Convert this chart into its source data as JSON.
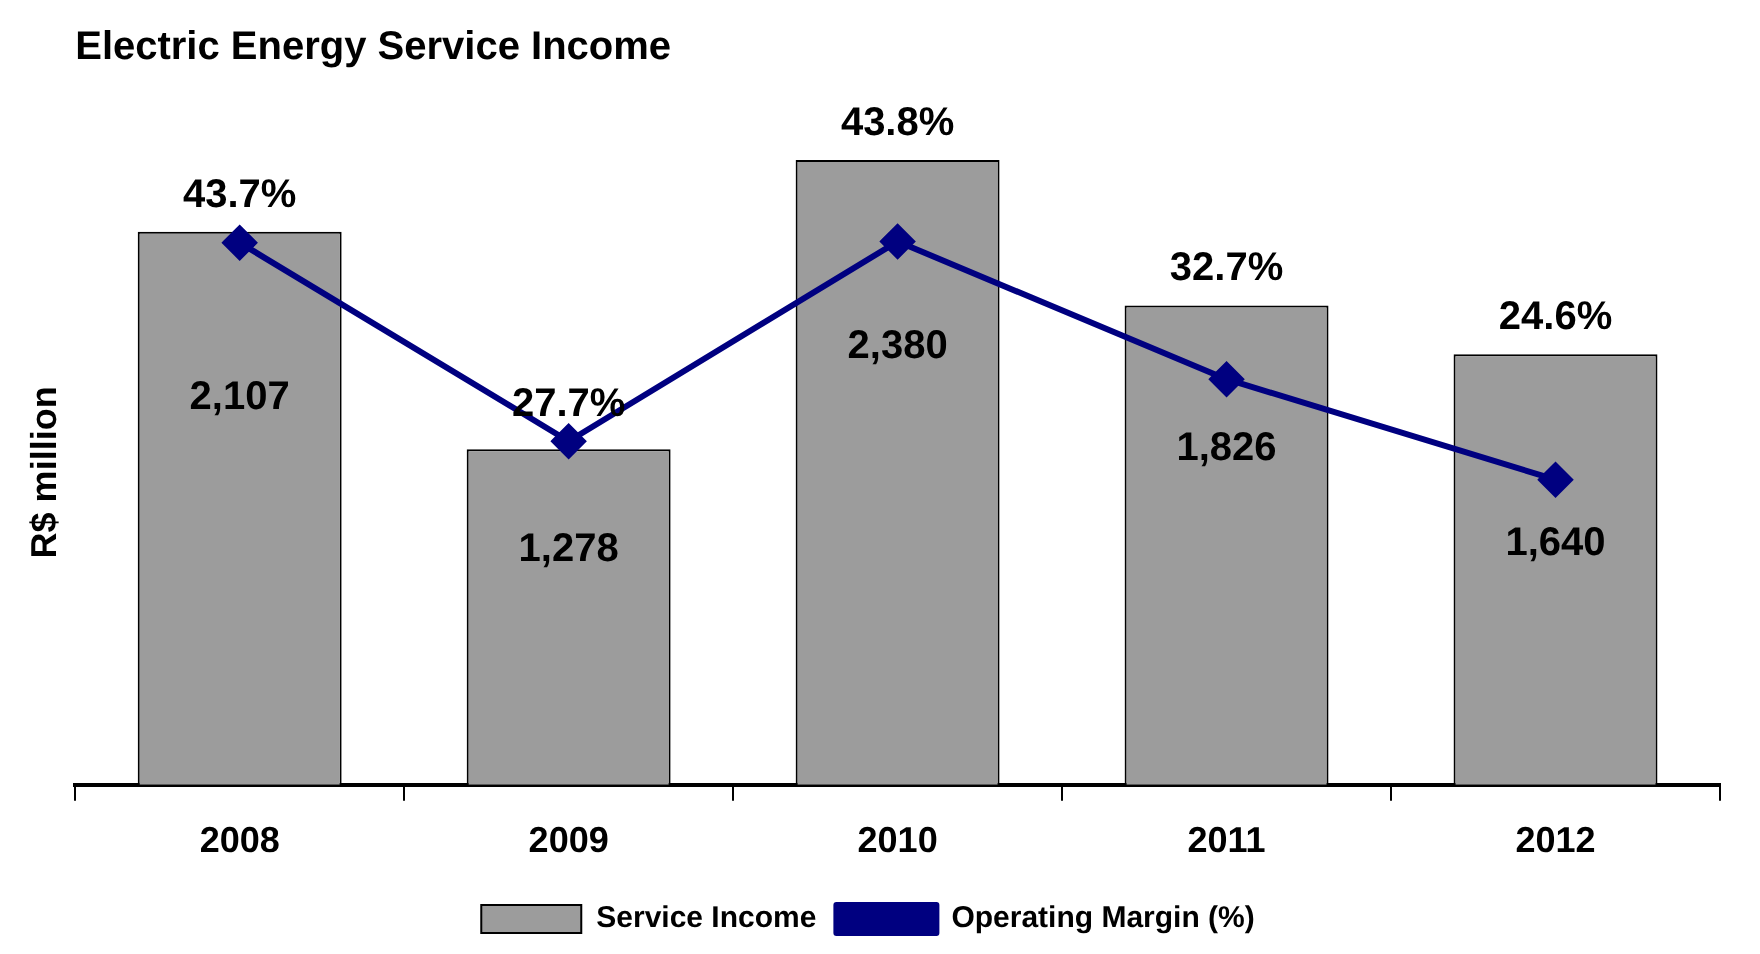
{
  "chart_data": {
    "type": "bar",
    "title": "Electric Energy Service Income",
    "ylabel": "R$ million",
    "categories": [
      "2008",
      "2009",
      "2010",
      "2011",
      "2012"
    ],
    "series": [
      {
        "name": "Service Income",
        "color": "#9c9c9c",
        "values": [
          2107,
          1278,
          2380,
          1826,
          1640
        ],
        "value_labels": [
          "2,107",
          "1,278",
          "2,380",
          "1,826",
          "1,640"
        ]
      },
      {
        "name": "Operating Margin (%)",
        "type": "line",
        "axis": "y2",
        "color": "#000080",
        "values": [
          43.7,
          27.7,
          43.8,
          32.7,
          24.6
        ],
        "value_labels": [
          "43.7%",
          "27.7%",
          "43.8%",
          "32.7%",
          "24.6%"
        ]
      }
    ],
    "tick_labels": "x",
    "legend": "bottom",
    "marker": "diamond",
    "grid": false
  }
}
